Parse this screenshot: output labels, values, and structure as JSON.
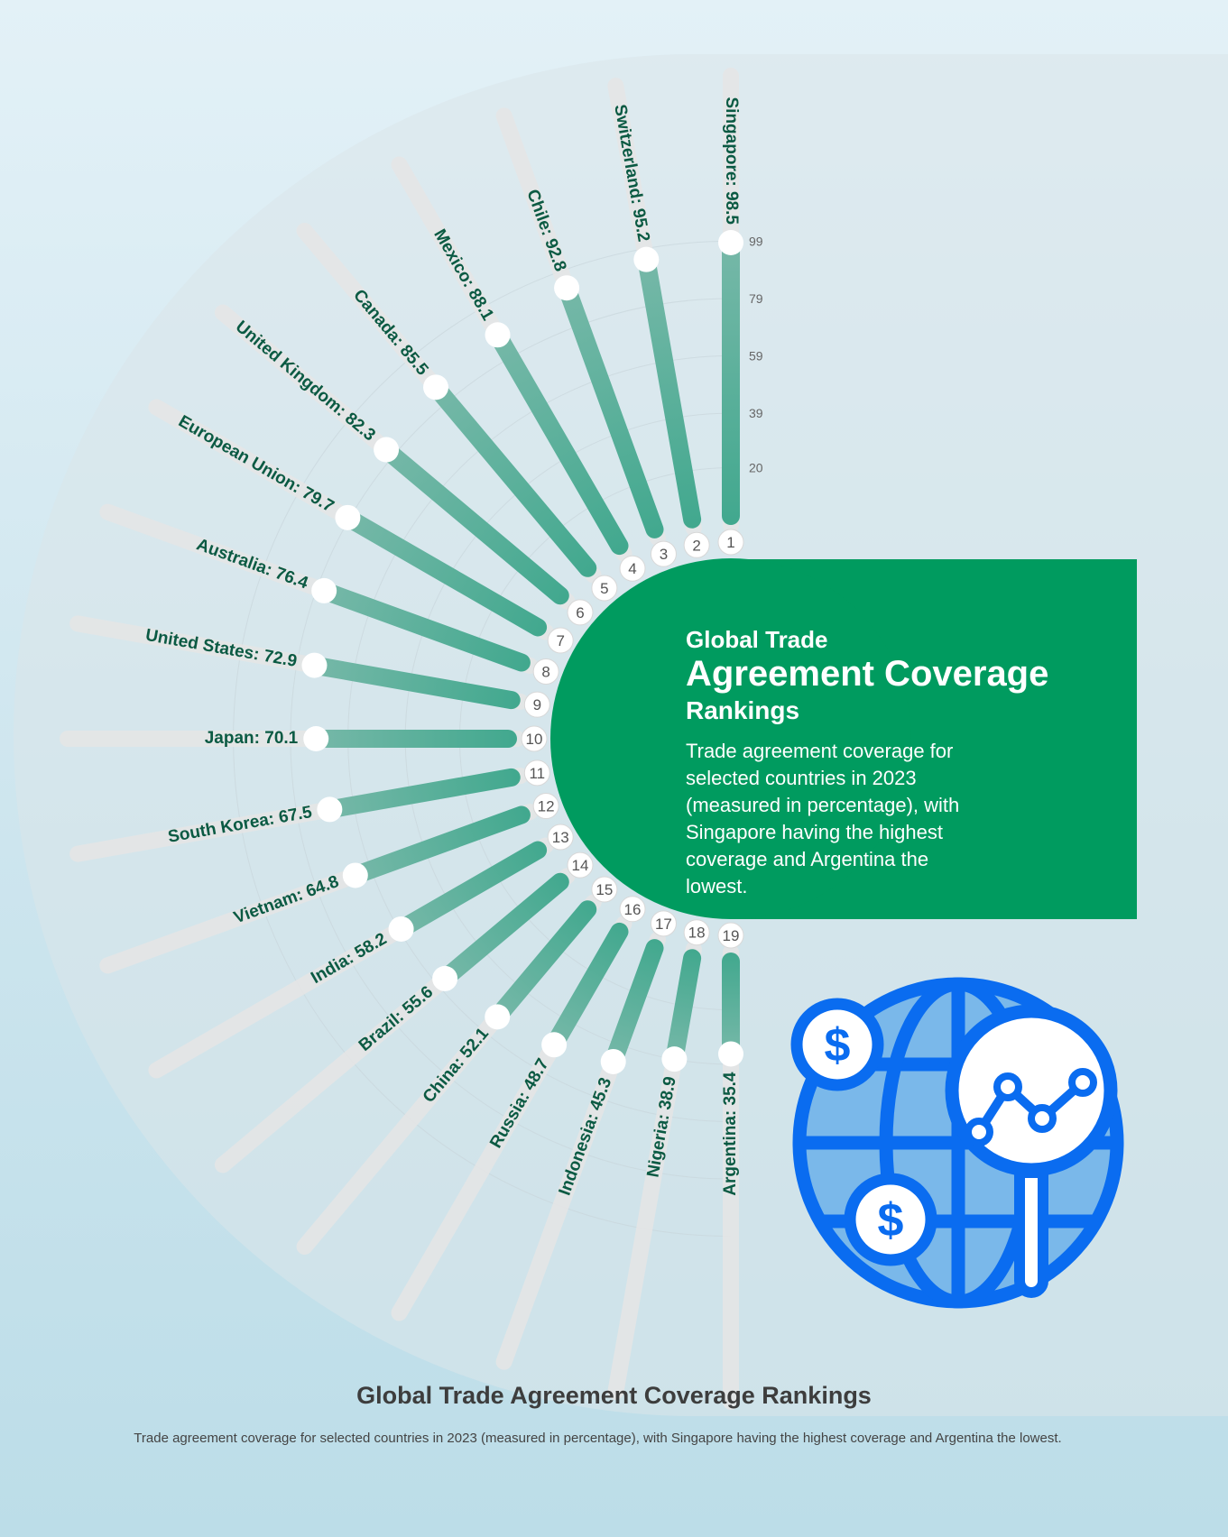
{
  "colors": {
    "bar_low": "#41a88e",
    "bar_high": "#76b8a8",
    "track": "#e6e6e6",
    "panel": "#009b5f",
    "label": "#0b5a43",
    "icon_blue": "#0a6cf0",
    "icon_fill": "#7ab8ea"
  },
  "headline": {
    "line1": "Global Trade",
    "line2": "Agreement Coverage",
    "line3": "Rankings",
    "description": "Trade agreement coverage for selected countries in 2023 (measured in percentage), with Singapore having the highest coverage and Argentina the lowest."
  },
  "footer": {
    "title": "Global Trade Agreement Coverage Rankings",
    "subtitle": "Trade agreement coverage for selected countries in 2023 (measured in percentage), with Singapore having the highest coverage and Argentina the lowest."
  },
  "icon": {
    "name": "globe-with-magnifier-and-dollar-icon",
    "glyph": "$"
  },
  "chart_data": {
    "type": "bar",
    "orientation": "radial",
    "unit": "%",
    "radial_ticks": [
      20,
      39,
      59,
      79,
      99
    ],
    "categories": [
      "Singapore",
      "Switzerland",
      "Chile",
      "Mexico",
      "Canada",
      "United Kingdom",
      "European Union",
      "Australia",
      "United States",
      "Japan",
      "South Korea",
      "Vietnam",
      "India",
      "Brazil",
      "China",
      "Russia",
      "Indonesia",
      "Nigeria",
      "Argentina"
    ],
    "values": [
      98.5,
      95.2,
      92.8,
      88.1,
      85.5,
      82.3,
      79.7,
      76.4,
      72.9,
      70.1,
      67.5,
      64.8,
      58.2,
      55.6,
      52.1,
      48.7,
      45.3,
      38.9,
      35.4
    ],
    "ranks": [
      "1",
      "2",
      "3",
      "4",
      "5",
      "6",
      "7",
      "8",
      "9",
      "10",
      "11",
      "12",
      "13",
      "14",
      "15",
      "16",
      "17",
      "18",
      "19"
    ],
    "labels": [
      "Singapore: 98.5",
      "Switzerland: 95.2",
      "Chile: 92.8",
      "Mexico: 88.1",
      "Canada: 85.5",
      "United Kingdom: 82.3",
      "European Union: 79.7",
      "Australia: 76.4",
      "United States: 72.9",
      "Japan: 70.1",
      "South Korea: 67.5",
      "Vietnam: 64.8",
      "India: 58.2",
      "Brazil: 55.6",
      "China: 52.1",
      "Russia: 48.7",
      "Indonesia: 45.3",
      "Nigeria: 38.9",
      "Argentina: 35.4"
    ]
  }
}
